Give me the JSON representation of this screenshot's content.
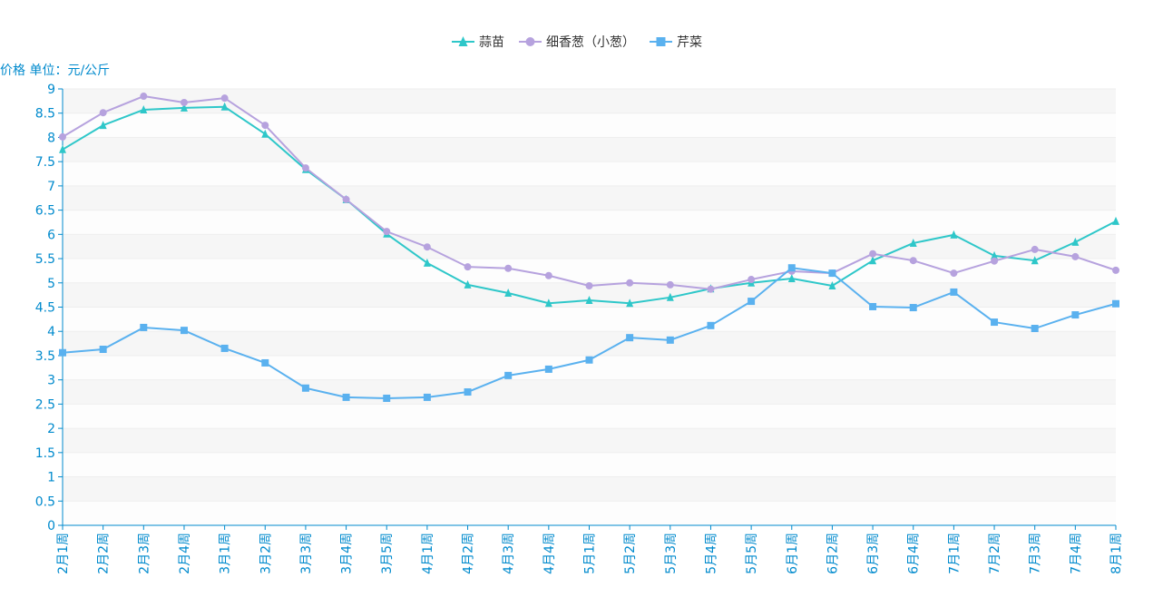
{
  "chart_data": {
    "type": "line",
    "title": "",
    "ylabel": "价格 单位：元/公斤",
    "xlabel": "",
    "ylim": [
      0,
      9
    ],
    "ytick_step": 0.5,
    "grid": true,
    "legend_position": "top-right",
    "categories": [
      "2月1周",
      "2月2周",
      "2月3周",
      "2月4周",
      "3月1周",
      "3月2周",
      "3月3周",
      "3月4周",
      "3月5周",
      "4月1周",
      "4月2周",
      "4月3周",
      "4月4周",
      "5月1周",
      "5月2周",
      "5月3周",
      "5月4周",
      "5月5周",
      "6月1周",
      "6月2周",
      "6月3周",
      "6月4周",
      "7月1周",
      "7月2周",
      "7月3周",
      "7月4周",
      "8月1周"
    ],
    "series": [
      {
        "name": "蒜苗",
        "color": "#2ec7c9",
        "marker": "triangle",
        "values": [
          7.75,
          8.25,
          8.57,
          8.61,
          8.63,
          8.07,
          7.34,
          6.72,
          6.01,
          5.41,
          4.96,
          4.79,
          4.58,
          4.64,
          4.58,
          4.7,
          4.88,
          5.0,
          5.09,
          4.94,
          5.46,
          5.82,
          5.99,
          5.56,
          5.46,
          5.84,
          6.27
        ]
      },
      {
        "name": "细香葱（小葱）",
        "color": "#b6a2de",
        "marker": "circle",
        "values": [
          8.01,
          8.51,
          8.85,
          8.72,
          8.81,
          8.25,
          7.37,
          6.72,
          6.06,
          5.74,
          5.33,
          5.3,
          5.15,
          4.94,
          5.0,
          4.96,
          4.87,
          5.07,
          5.24,
          5.2,
          5.6,
          5.46,
          5.2,
          5.45,
          5.69,
          5.54,
          5.26
        ]
      },
      {
        "name": "芹菜",
        "color": "#5ab1ef",
        "marker": "square",
        "values": [
          3.56,
          3.63,
          4.08,
          4.02,
          3.65,
          3.35,
          2.83,
          2.64,
          2.62,
          2.64,
          2.75,
          3.09,
          3.22,
          3.41,
          3.87,
          3.82,
          4.12,
          4.62,
          5.31,
          5.2,
          4.51,
          4.49,
          4.81,
          4.19,
          4.06,
          4.34,
          4.57
        ]
      }
    ],
    "axis_color": "#008acd"
  }
}
